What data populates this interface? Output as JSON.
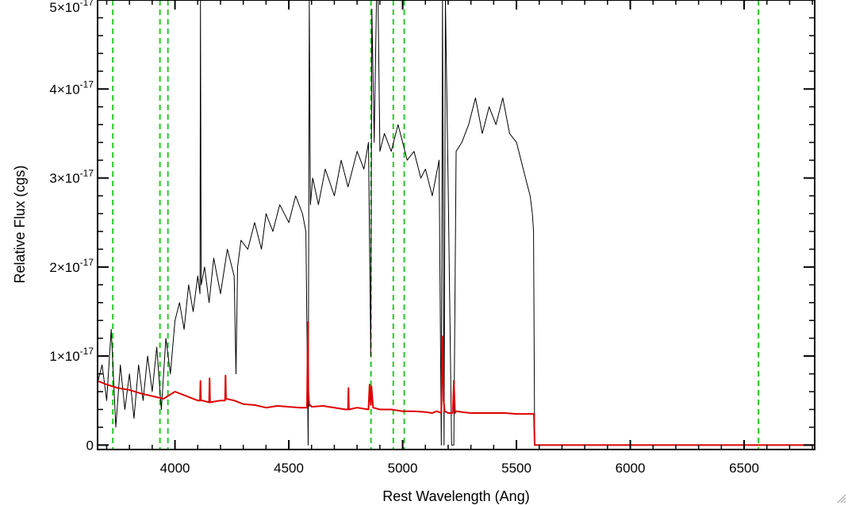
{
  "chart_data": {
    "type": "line",
    "title": "",
    "xlabel": "Rest Wavelength (Ang)",
    "ylabel": "Relative Flux (cgs)",
    "xlim": [
      3660,
      6810
    ],
    "ylim": [
      -0.05,
      5.0
    ],
    "x_ticks": [
      {
        "value": 4000,
        "label": "4000"
      },
      {
        "value": 4500,
        "label": "4500"
      },
      {
        "value": 5000,
        "label": "5000"
      },
      {
        "value": 5500,
        "label": "5500"
      },
      {
        "value": 6000,
        "label": "6000"
      },
      {
        "value": 6500,
        "label": "6500"
      }
    ],
    "y_ticks": [
      {
        "value": 0,
        "mant": "0",
        "exp": ""
      },
      {
        "value": 1,
        "mant": "1×10",
        "exp": "-17"
      },
      {
        "value": 2,
        "mant": "2×10",
        "exp": "-17"
      },
      {
        "value": 3,
        "mant": "3×10",
        "exp": "-17"
      },
      {
        "value": 4,
        "mant": "4×10",
        "exp": "-17"
      },
      {
        "value": 5,
        "mant": "5×10",
        "exp": "-17"
      }
    ],
    "y_unit_scale": "1e-17",
    "line_markers": {
      "color": "#22cc22",
      "style": "dashed",
      "x": [
        3727,
        3934,
        3969,
        4861,
        4959,
        5007,
        6563
      ]
    },
    "series": [
      {
        "color": "#000000",
        "x": [
          3660,
          3680,
          3700,
          3720,
          3740,
          3760,
          3780,
          3800,
          3820,
          3840,
          3860,
          3880,
          3900,
          3920,
          3940,
          3960,
          3980,
          4000,
          4020,
          4040,
          4060,
          4080,
          4100,
          4110,
          4112,
          4115,
          4130,
          4150,
          4170,
          4200,
          4230,
          4260,
          4268,
          4275,
          4290,
          4320,
          4350,
          4380,
          4400,
          4430,
          4460,
          4500,
          4530,
          4560,
          4575,
          4585,
          4590,
          4595,
          4605,
          4630,
          4660,
          4700,
          4730,
          4760,
          4800,
          4830,
          4850,
          4860,
          4865,
          4875,
          4885,
          4892,
          4900,
          4920,
          4950,
          4980,
          5000,
          5020,
          5050,
          5080,
          5100,
          5130,
          5160,
          5170,
          5175,
          5182,
          5188,
          5200,
          5215,
          5225,
          5235,
          5260,
          5290,
          5320,
          5350,
          5380,
          5410,
          5440,
          5470,
          5500,
          5520,
          5540,
          5560,
          5570,
          5575,
          5580,
          5600,
          5800,
          6000,
          6200,
          6400,
          6600,
          6800
        ],
        "y": [
          0.7,
          0.9,
          0.5,
          1.3,
          0.2,
          0.9,
          0.4,
          0.8,
          0.3,
          0.9,
          0.5,
          1.0,
          0.6,
          1.1,
          0.4,
          1.2,
          0.8,
          1.4,
          1.6,
          1.3,
          1.8,
          1.5,
          1.9,
          1.7,
          5.0,
          1.8,
          2.0,
          1.6,
          2.1,
          1.7,
          2.2,
          1.9,
          0.8,
          2.0,
          2.3,
          2.2,
          2.5,
          2.2,
          2.6,
          2.4,
          2.7,
          2.5,
          2.8,
          2.6,
          2.4,
          0.0,
          5.0,
          2.7,
          3.0,
          2.7,
          3.1,
          2.8,
          3.2,
          2.9,
          3.3,
          3.1,
          3.4,
          1.0,
          4.9,
          3.4,
          5.0,
          5.0,
          3.3,
          3.5,
          3.3,
          3.6,
          3.4,
          3.2,
          3.3,
          3.0,
          3.1,
          2.8,
          3.2,
          0.0,
          5.0,
          0.0,
          5.0,
          2.9,
          0.0,
          0.0,
          3.3,
          3.4,
          3.6,
          3.9,
          3.5,
          3.8,
          3.6,
          3.9,
          3.5,
          3.4,
          3.2,
          3.0,
          2.8,
          2.6,
          2.4,
          0.0,
          0.0,
          0.0,
          0.0,
          0.0,
          0.0,
          0.0,
          0.0
        ]
      },
      {
        "color": "#dd0000",
        "x": [
          3660,
          3700,
          3750,
          3800,
          3850,
          3900,
          3950,
          4000,
          4050,
          4100,
          4110,
          4112,
          4114,
          4120,
          4150,
          4152,
          4154,
          4200,
          4220,
          4222,
          4224,
          4260,
          4300,
          4350,
          4400,
          4450,
          4500,
          4550,
          4580,
          4584,
          4586,
          4590,
          4595,
          4600,
          4650,
          4700,
          4750,
          4760,
          4762,
          4764,
          4800,
          4850,
          4855,
          4860,
          4863,
          4870,
          4900,
          4950,
          5000,
          5050,
          5100,
          5130,
          5150,
          5170,
          5175,
          5180,
          5185,
          5200,
          5220,
          5225,
          5230,
          5235,
          5260,
          5300,
          5350,
          5400,
          5450,
          5500,
          5550,
          5577,
          5580,
          5600,
          5800,
          6000,
          6200,
          6400,
          6600,
          6810
        ],
        "y": [
          0.72,
          0.68,
          0.64,
          0.62,
          0.58,
          0.55,
          0.52,
          0.6,
          0.55,
          0.5,
          0.5,
          0.72,
          0.5,
          0.5,
          0.48,
          0.75,
          0.48,
          0.5,
          0.5,
          0.78,
          0.52,
          0.5,
          0.46,
          0.45,
          0.42,
          0.44,
          0.43,
          0.42,
          0.42,
          1.38,
          0.6,
          0.44,
          0.45,
          0.43,
          0.44,
          0.42,
          0.4,
          0.4,
          0.64,
          0.4,
          0.42,
          0.4,
          0.68,
          0.45,
          0.66,
          0.42,
          0.4,
          0.4,
          0.38,
          0.38,
          0.37,
          0.36,
          0.38,
          0.36,
          1.22,
          0.5,
          0.38,
          0.36,
          0.36,
          0.72,
          0.36,
          0.38,
          0.37,
          0.36,
          0.36,
          0.36,
          0.36,
          0.35,
          0.35,
          0.35,
          0.0,
          0.0,
          0.0,
          0.0,
          0.0,
          0.0,
          0.0,
          0.0
        ]
      }
    ]
  }
}
